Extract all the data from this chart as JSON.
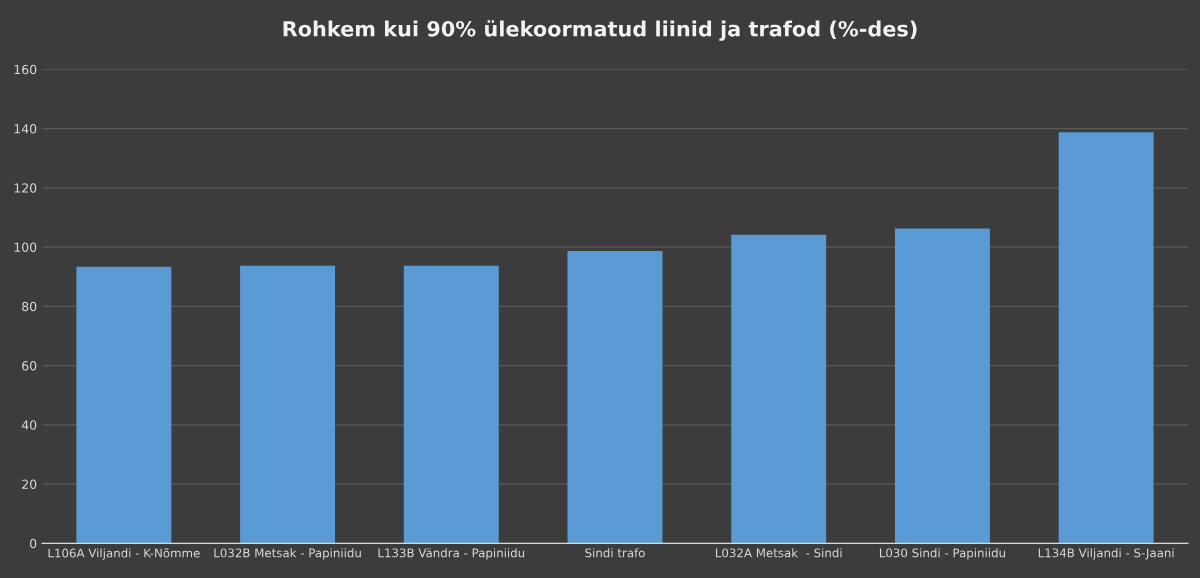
{
  "chart_data": {
    "type": "bar",
    "title": "Rohkem kui 90% ülekoormatud liinid ja trafod (%-des)",
    "categories": [
      "L106A Viljandi - K-Nõmme",
      "L032B Metsak - Papiniidu",
      "L133B Vändra - Papiniidu",
      "Sindi trafo",
      "L032A Metsak  - Sindi",
      "L030 Sindi - Papiniidu",
      "L134B Viljandi - S-Jaani"
    ],
    "values": [
      93.4,
      93.7,
      93.7,
      98.7,
      104.2,
      106.3,
      138.8
    ],
    "color": "#5b9bd5",
    "ylim": [
      0,
      160
    ],
    "yticks": [
      0,
      20,
      40,
      60,
      80,
      100,
      120,
      140,
      160
    ],
    "grid": "y"
  }
}
